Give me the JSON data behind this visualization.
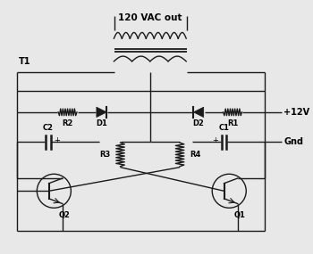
{
  "bg_color": "#e8e8e8",
  "line_color": "#1a1a1a",
  "text_color": "#000000",
  "label_120vac": "120 VAC out",
  "label_T1": "T1",
  "label_R1": "R1",
  "label_R2": "R2",
  "label_R3": "R3",
  "label_R4": "R4",
  "label_D1": "D1",
  "label_D2": "D2",
  "label_C1": "C1",
  "label_C2": "C2",
  "label_Q1": "Q1",
  "label_Q2": "Q2",
  "label_12V": "+12V",
  "label_Gnd": "Gnd"
}
